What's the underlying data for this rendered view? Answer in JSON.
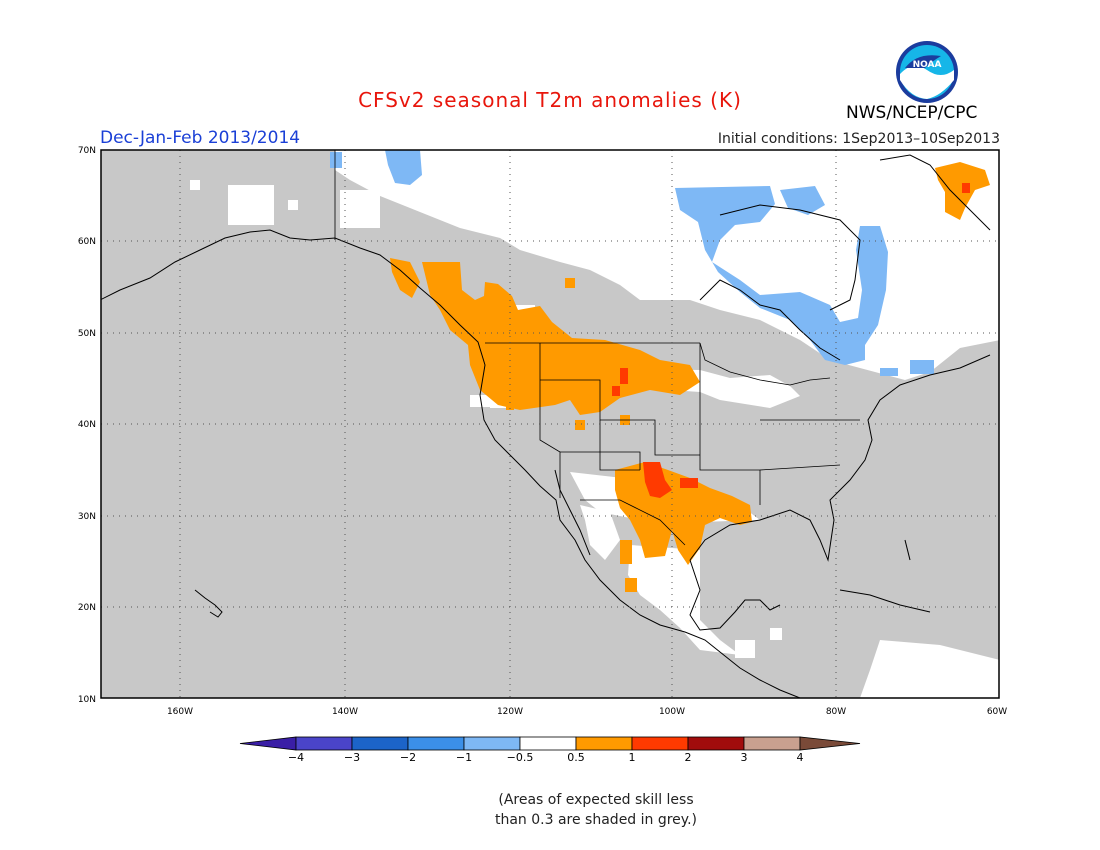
{
  "title": "CFSv2 seasonal T2m anomalies (K)",
  "period": "Dec-Jan-Feb 2013/2014",
  "initial_conditions": "Initial conditions: 1Sep2013–10Sep2013",
  "agency": "NWS/NCEP/CPC",
  "logo_text": "NOAA",
  "footnote": [
    "(Areas of expected skill less",
    "than 0.3 are shaded in grey.)"
  ],
  "lat_labels": [
    "70N",
    "60N",
    "50N",
    "40N",
    "30N",
    "20N",
    "10N"
  ],
  "lon_labels": [
    "160W",
    "140W",
    "120W",
    "100W",
    "80W",
    "60W"
  ],
  "colorbar": {
    "labels": [
      "−4",
      "−3",
      "−2",
      "−1",
      "−0.5",
      "0.5",
      "1",
      "2",
      "3",
      "4"
    ],
    "colors": [
      "#3a1ea6",
      "#4a44c9",
      "#1c64c8",
      "#3b8fe8",
      "#7eb8f5",
      "#ffffff",
      "#ff9a00",
      "#ff3a00",
      "#a10c0c",
      "#c9a08f",
      "#7a4a38"
    ]
  },
  "colors": {
    "skill_grey": "#c8c8c8",
    "neutral": "#ffffff",
    "light_blue": "#7eb8f5",
    "orange": "#ff9a00",
    "red": "#ff3a00"
  }
}
